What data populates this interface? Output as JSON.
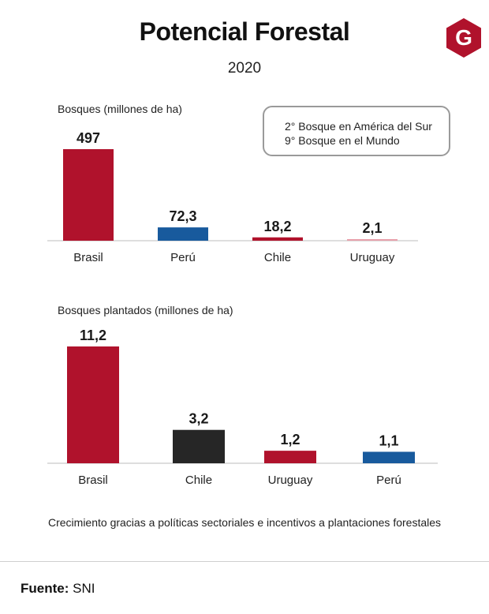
{
  "header": {
    "title": "Potencial Forestal",
    "subtitle": "2020",
    "logo_letter": "G"
  },
  "note": {
    "line1": "2° Bosque en América del Sur",
    "line2": "9° Bosque en el Mundo"
  },
  "colors": {
    "red": "#b0122c",
    "blue": "#185a9d",
    "black": "#262626",
    "axis": "#bdbdbd"
  },
  "chart_data": [
    {
      "type": "bar",
      "title": "Bosques (millones de ha)",
      "categories": [
        "Brasil",
        "Perú",
        "Chile",
        "Uruguay"
      ],
      "values": [
        497,
        72.3,
        18.2,
        2.1
      ],
      "labels": [
        "497",
        "72,3",
        "18,2",
        "2,1"
      ],
      "colors": [
        "#b0122c",
        "#185a9d",
        "#b0122c",
        "#e8a0ab"
      ],
      "ylim": [
        0,
        497
      ]
    },
    {
      "type": "bar",
      "title": "Bosques plantados (millones de ha)",
      "categories": [
        "Brasil",
        "Chile",
        "Uruguay",
        "Perú"
      ],
      "values": [
        11.2,
        3.2,
        1.2,
        1.1
      ],
      "labels": [
        "11,2",
        "3,2",
        "1,2",
        "1,1"
      ],
      "colors": [
        "#b0122c",
        "#262626",
        "#b0122c",
        "#185a9d"
      ],
      "ylim": [
        0,
        11.2
      ]
    }
  ],
  "footnote": "Crecimiento gracias a políticas sectoriales e incentivos a plantaciones forestales",
  "source": {
    "label": "Fuente:",
    "value": "SNI"
  }
}
